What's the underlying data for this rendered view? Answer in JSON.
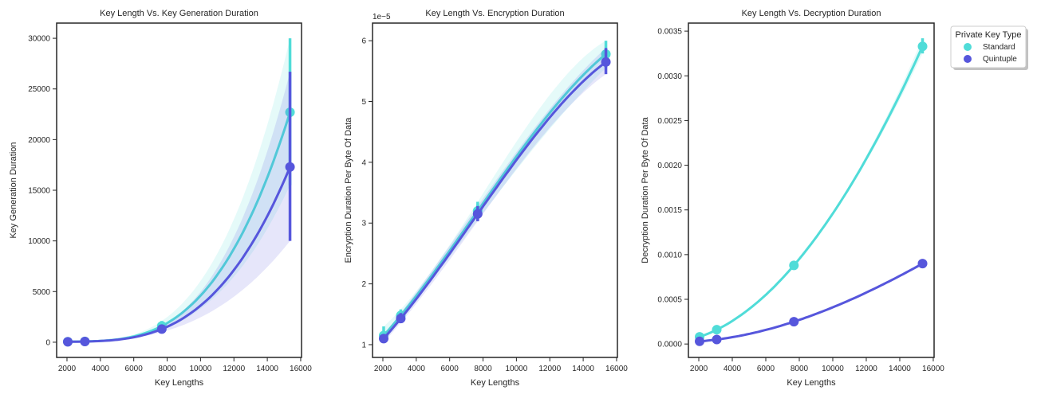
{
  "colors": {
    "Standard": "#50dcd8",
    "Quintuple": "#5656dc",
    "axis": "#262626"
  },
  "legend": {
    "title": "Private Key Type",
    "placement": "outside-right-top",
    "entries": [
      {
        "label": "Standard",
        "color": "#50dcd8"
      },
      {
        "label": "Quintuple",
        "color": "#5656dc"
      }
    ]
  },
  "chart_data": [
    {
      "type": "line",
      "title": "Key Length Vs. Key Generation Duration",
      "xlabel": "Key Lengths",
      "ylabel": "Key Generation Duration",
      "xlim": [
        1380,
        16050
      ],
      "ylim": [
        -1500,
        31500
      ],
      "xticks": [
        2000,
        4000,
        6000,
        8000,
        10000,
        12000,
        14000,
        16000
      ],
      "yticks": [
        0,
        5000,
        10000,
        15000,
        20000,
        25000,
        30000
      ],
      "ytick_labels": [
        "0",
        "5000",
        "10000",
        "15000",
        "20000",
        "25000",
        "30000"
      ],
      "offset_text": "",
      "x": [
        2048,
        3072,
        7680,
        15360
      ],
      "series": [
        {
          "name": "Standard",
          "values": [
            50,
            80,
            1600,
            22700
          ],
          "ci_low": [
            20,
            40,
            1200,
            15500
          ],
          "ci_high": [
            90,
            130,
            2100,
            30000
          ]
        },
        {
          "name": "Quintuple",
          "values": [
            40,
            70,
            1300,
            17300
          ],
          "ci_low": [
            10,
            30,
            1000,
            10000
          ],
          "ci_high": [
            80,
            120,
            1600,
            26700
          ]
        }
      ]
    },
    {
      "type": "line",
      "title": "Key Length Vs. Encryption Duration",
      "xlabel": "Key Lengths",
      "ylabel": "Encryption Duration Per Byte Of Data",
      "xlim": [
        1380,
        16050
      ],
      "ylim": [
        7.9e-06,
        6.29e-05
      ],
      "xticks": [
        2000,
        4000,
        6000,
        8000,
        10000,
        12000,
        14000,
        16000
      ],
      "yticks": [
        1e-05,
        2e-05,
        3e-05,
        4e-05,
        5e-05,
        6e-05
      ],
      "ytick_labels": [
        "1",
        "2",
        "3",
        "4",
        "5",
        "6"
      ],
      "offset_text": "1e−5",
      "x": [
        2048,
        3072,
        7680,
        15360
      ],
      "series": [
        {
          "name": "Standard",
          "values": [
            1.15e-05,
            1.48e-05,
            3.2e-05,
            5.78e-05
          ],
          "ci_low": [
            1.05e-05,
            1.4e-05,
            3.05e-05,
            5.55e-05
          ],
          "ci_high": [
            1.3e-05,
            1.58e-05,
            3.35e-05,
            6e-05
          ]
        },
        {
          "name": "Quintuple",
          "values": [
            1.1e-05,
            1.43e-05,
            3.15e-05,
            5.65e-05
          ],
          "ci_low": [
            1.04e-05,
            1.36e-05,
            3.03e-05,
            5.45e-05
          ],
          "ci_high": [
            1.16e-05,
            1.52e-05,
            3.28e-05,
            5.88e-05
          ]
        }
      ]
    },
    {
      "type": "line",
      "title": "Key Length Vs. Decryption Duration",
      "xlabel": "Key Lengths",
      "ylabel": "Decryption Duration Per Byte Of Data",
      "xlim": [
        1380,
        16050
      ],
      "ylim": [
        -0.00015,
        0.00359
      ],
      "xticks": [
        2000,
        4000,
        6000,
        8000,
        10000,
        12000,
        14000,
        16000
      ],
      "yticks": [
        0,
        0.0005,
        0.001,
        0.0015,
        0.002,
        0.0025,
        0.003,
        0.0035
      ],
      "ytick_labels": [
        "0.0000",
        "0.0005",
        "0.0010",
        "0.0015",
        "0.0020",
        "0.0025",
        "0.0030",
        "0.0035"
      ],
      "offset_text": "",
      "x": [
        2048,
        3072,
        7680,
        15360
      ],
      "series": [
        {
          "name": "Standard",
          "values": [
            8e-05,
            0.00016,
            0.00088,
            0.00333
          ],
          "ci_low": [
            7e-05,
            0.00015,
            0.00087,
            0.00325
          ],
          "ci_high": [
            9e-05,
            0.00017,
            0.00089,
            0.00342
          ]
        },
        {
          "name": "Quintuple",
          "values": [
            3e-05,
            5e-05,
            0.00025,
            0.0009
          ],
          "ci_low": [
            2e-05,
            4e-05,
            0.00024,
            0.00089
          ],
          "ci_high": [
            4e-05,
            6e-05,
            0.00026,
            0.00091
          ]
        }
      ]
    }
  ]
}
